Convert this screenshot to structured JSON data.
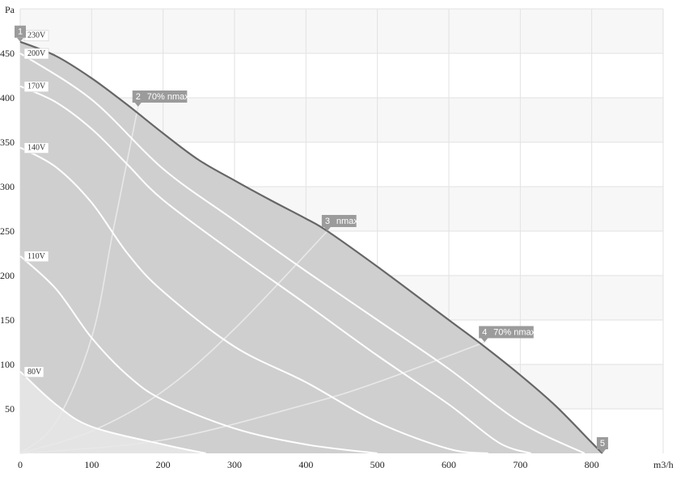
{
  "chart_data": {
    "type": "line",
    "xlabel": "m3/h",
    "ylabel": "Pa",
    "xlim": [
      0,
      900
    ],
    "ylim": [
      0,
      500
    ],
    "x_ticks": [
      0,
      100,
      200,
      300,
      400,
      500,
      600,
      700,
      800
    ],
    "y_ticks": [
      50,
      100,
      150,
      200,
      250,
      300,
      350,
      400,
      450
    ],
    "grid": true,
    "colors": {
      "band_light": "#f7f7f7",
      "band_white": "#ffffff",
      "grid": "#e2e2e2",
      "fill_area": "#cfcfcf",
      "fill_low": "#e4e4e4",
      "max_curve": "#666666",
      "voltage_curves": "#ffffff",
      "system_curves": "#e8e8e8",
      "marker_bg": "#9b9b9b",
      "label_bg": "#ffffff"
    },
    "series": [
      {
        "name": "230V",
        "points": [
          [
            0,
            463
          ],
          [
            50,
            447
          ],
          [
            100,
            422
          ],
          [
            150,
            392
          ],
          [
            200,
            360
          ],
          [
            250,
            330
          ],
          [
            300,
            307
          ],
          [
            350,
            285
          ],
          [
            400,
            264
          ],
          [
            430,
            250
          ],
          [
            500,
            210
          ],
          [
            600,
            150
          ],
          [
            650,
            120
          ],
          [
            700,
            88
          ],
          [
            750,
            53
          ],
          [
            800,
            12
          ],
          [
            815,
            0
          ]
        ]
      },
      {
        "name": "200V",
        "points": [
          [
            0,
            450
          ],
          [
            100,
            398
          ],
          [
            200,
            320
          ],
          [
            300,
            262
          ],
          [
            400,
            205
          ],
          [
            500,
            150
          ],
          [
            600,
            95
          ],
          [
            700,
            35
          ],
          [
            790,
            0
          ]
        ]
      },
      {
        "name": "170V",
        "points": [
          [
            0,
            413
          ],
          [
            50,
            395
          ],
          [
            100,
            365
          ],
          [
            150,
            325
          ],
          [
            200,
            285
          ],
          [
            300,
            225
          ],
          [
            400,
            168
          ],
          [
            500,
            110
          ],
          [
            600,
            55
          ],
          [
            670,
            12
          ],
          [
            715,
            0
          ]
        ]
      },
      {
        "name": "140V",
        "points": [
          [
            0,
            344
          ],
          [
            50,
            322
          ],
          [
            100,
            282
          ],
          [
            150,
            225
          ],
          [
            200,
            182
          ],
          [
            300,
            120
          ],
          [
            400,
            80
          ],
          [
            500,
            35
          ],
          [
            600,
            5
          ],
          [
            655,
            0
          ]
        ]
      },
      {
        "name": "110V",
        "points": [
          [
            0,
            222
          ],
          [
            50,
            185
          ],
          [
            100,
            130
          ],
          [
            150,
            88
          ],
          [
            200,
            60
          ],
          [
            300,
            28
          ],
          [
            400,
            10
          ],
          [
            500,
            0
          ]
        ]
      },
      {
        "name": "80V",
        "points": [
          [
            0,
            92
          ],
          [
            50,
            55
          ],
          [
            100,
            30
          ],
          [
            200,
            10
          ],
          [
            260,
            0
          ]
        ]
      }
    ],
    "system_curves": [
      {
        "name": "2",
        "points": [
          [
            0,
            0
          ],
          [
            50,
            35
          ],
          [
            100,
            130
          ],
          [
            130,
            250
          ],
          [
            160,
            370
          ],
          [
            165,
            390
          ]
        ]
      },
      {
        "name": "3",
        "points": [
          [
            0,
            0
          ],
          [
            100,
            25
          ],
          [
            200,
            70
          ],
          [
            300,
            140
          ],
          [
            430,
            250
          ]
        ]
      },
      {
        "name": "4",
        "points": [
          [
            0,
            0
          ],
          [
            200,
            15
          ],
          [
            400,
            55
          ],
          [
            500,
            80
          ],
          [
            650,
            125
          ]
        ]
      }
    ],
    "markers": [
      {
        "id": "1",
        "text": "",
        "x": 0,
        "y": 463
      },
      {
        "id": "2",
        "text": "70% nmax",
        "x": 165,
        "y": 390
      },
      {
        "id": "3",
        "text": "nmax",
        "x": 430,
        "y": 250
      },
      {
        "id": "4",
        "text": "70% nmax",
        "x": 650,
        "y": 125
      },
      {
        "id": "5",
        "text": "",
        "x": 815,
        "y": 0
      }
    ],
    "voltage_labels": [
      {
        "text": "230V",
        "y": 463
      },
      {
        "text": "200V",
        "y": 450
      },
      {
        "text": "170V",
        "y": 413
      },
      {
        "text": "140V",
        "y": 344
      },
      {
        "text": "110V",
        "y": 222
      },
      {
        "text": "80V",
        "y": 92
      }
    ]
  }
}
